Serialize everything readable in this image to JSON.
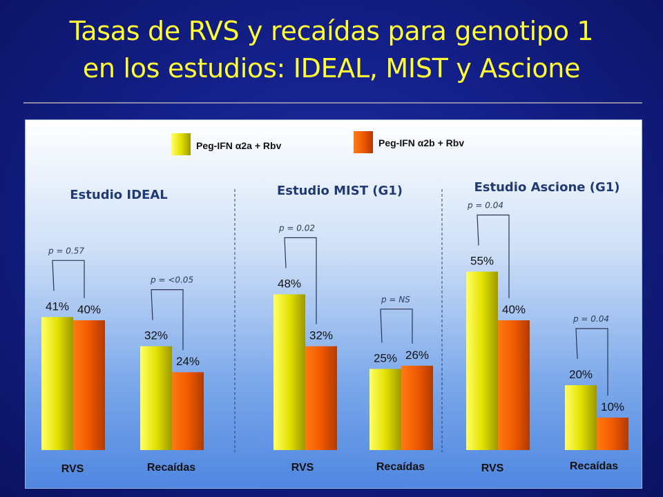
{
  "title": {
    "line1": "Tasas de RVS y recaídas para genotipo 1",
    "line2": "en los estudios: IDEAL, MIST y Ascione"
  },
  "colors": {
    "series_a": "#e2e000",
    "series_b": "#f05a00",
    "title": "#ffff33"
  },
  "chart_data": {
    "type": "bar",
    "legend": [
      {
        "name": "Peg-IFN α2a + Rbv",
        "color": "#e2e000"
      },
      {
        "name": "Peg-IFN α2b + Rbv",
        "color": "#f05a00"
      }
    ],
    "ylim": [
      0,
      70
    ],
    "grid": false,
    "legend_placement": "top",
    "studies": [
      {
        "title": "Estudio IDEAL",
        "groups": [
          {
            "category": "RVS",
            "values": [
              41,
              40
            ],
            "labels": [
              "41%",
              "40%"
            ],
            "pvalue": "p = 0.57"
          },
          {
            "category": "Recaídas",
            "values": [
              32,
              24
            ],
            "labels": [
              "32%",
              "24%"
            ],
            "pvalue": "p = <0.05"
          }
        ]
      },
      {
        "title": "Estudio MIST (G1)",
        "groups": [
          {
            "category": "RVS",
            "values": [
              48,
              32
            ],
            "labels": [
              "48%",
              "32%"
            ],
            "pvalue": "p = 0.02"
          },
          {
            "category": "Recaídas",
            "values": [
              25,
              26
            ],
            "labels": [
              "25%",
              "26%"
            ],
            "pvalue": "p = NS"
          }
        ]
      },
      {
        "title": "Estudio Ascione (G1)",
        "groups": [
          {
            "category": "RVS",
            "values": [
              55,
              40
            ],
            "labels": [
              "55%",
              "40%"
            ],
            "pvalue": "p = 0.04"
          },
          {
            "category": "Recaídas",
            "values": [
              20,
              10
            ],
            "labels": [
              "20%",
              "10%"
            ],
            "pvalue": "p = 0.04"
          }
        ]
      }
    ]
  }
}
